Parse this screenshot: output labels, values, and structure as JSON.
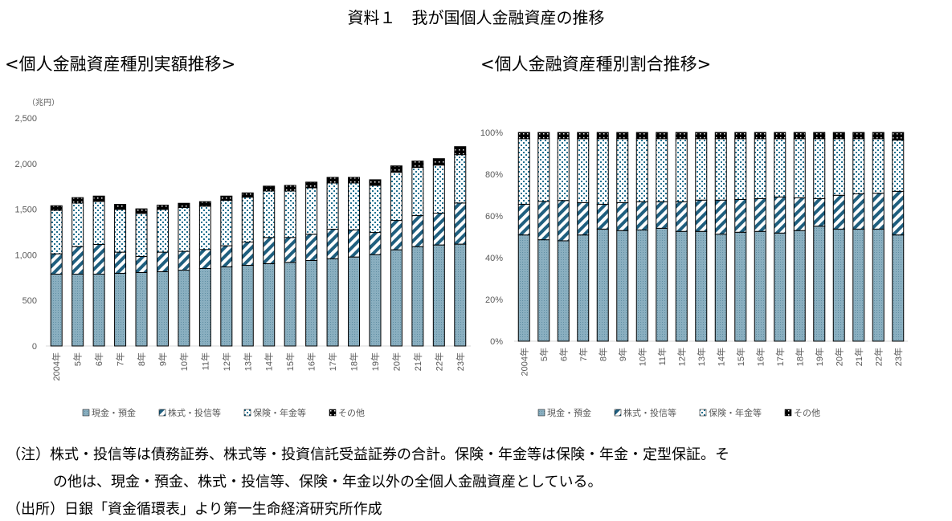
{
  "title": "資料１　我が国個人金融資産の推移",
  "notes": [
    "（注）株式・投信等は債務証券、株式等・投資信託受益証券の合計。保険・年金等は保険・年金・定型保証。そ",
    "の他は、現金・預金、株式・投信等、保険・年金以外の全個人金融資産としている。",
    "（出所）日銀「資金循環表」より第一生命経済研究所作成"
  ],
  "colors": {
    "cash": "#8aafc0",
    "stocks": "#1f5f7f",
    "insurance": "#1f6f8f",
    "other": "#000000"
  },
  "chart_data": [
    {
      "type": "bar",
      "stacked": true,
      "title": "<個人金融資産種別実額推移>",
      "unit_label": "（兆円）",
      "ylim": [
        0,
        2500
      ],
      "yticks": [
        0,
        500,
        1000,
        1500,
        2000,
        2500
      ],
      "ytick_labels": [
        "0",
        "500",
        "1,000",
        "1,500",
        "2,000",
        "2,500"
      ],
      "categories": [
        "2004年",
        "5年",
        "6年",
        "7年",
        "8年",
        "9年",
        "10年",
        "11年",
        "12年",
        "13年",
        "14年",
        "15年",
        "16年",
        "17年",
        "18年",
        "19年",
        "20年",
        "21年",
        "22年",
        "23年"
      ],
      "series": [
        {
          "name": "現金・預金",
          "key": "cash",
          "values": [
            788,
            788,
            788,
            797,
            806,
            815,
            832,
            850,
            868,
            885,
            903,
            917,
            938,
            958,
            976,
            1002,
            1055,
            1090,
            1108,
            1117
          ]
        },
        {
          "name": "株式・投信等",
          "key": "stocks",
          "values": [
            223,
            302,
            326,
            232,
            176,
            214,
            206,
            208,
            231,
            255,
            287,
            273,
            287,
            323,
            296,
            243,
            322,
            340,
            349,
            451
          ]
        },
        {
          "name": "保険・年金等",
          "key": "insurance",
          "values": [
            477,
            478,
            472,
            469,
            472,
            469,
            480,
            475,
            498,
            492,
            510,
            510,
            510,
            507,
            516,
            516,
            528,
            528,
            527,
            530
          ]
        },
        {
          "name": "その他",
          "key": "other",
          "values": [
            50,
            59,
            58,
            55,
            50,
            47,
            47,
            50,
            47,
            47,
            53,
            61,
            62,
            61,
            61,
            62,
            70,
            70,
            70,
            88
          ]
        }
      ]
    },
    {
      "type": "bar",
      "stacked": true,
      "title": "<個人金融資産種別割合推移>",
      "ylim": [
        0,
        100
      ],
      "yticks": [
        0,
        20,
        40,
        60,
        80,
        100
      ],
      "ytick_labels": [
        "0%",
        "20%",
        "40%",
        "60%",
        "80%",
        "100%"
      ],
      "categories": [
        "2004年",
        "5年",
        "6年",
        "7年",
        "8年",
        "9年",
        "10年",
        "11年",
        "12年",
        "13年",
        "14年",
        "15年",
        "16年",
        "17年",
        "18年",
        "19年",
        "20年",
        "21年",
        "22年",
        "23年"
      ],
      "series": [
        {
          "name": "現金・預金",
          "key": "cash",
          "values": [
            50.9,
            48.6,
            48.1,
            50.9,
            53.7,
            53.0,
            53.3,
            54.1,
            52.6,
            52.6,
            51.3,
            52.2,
            52.6,
            51.8,
            53.0,
            55.1,
            53.7,
            53.7,
            53.7,
            50.9
          ]
        },
        {
          "name": "株式・投信等",
          "key": "stocks",
          "values": [
            14.7,
            18.4,
            19.3,
            15.5,
            11.9,
            13.4,
            13.5,
            12.7,
            14.2,
            15.0,
            16.3,
            15.7,
            15.7,
            17.3,
            15.7,
            13.2,
            16.2,
            16.9,
            17.2,
            20.9
          ]
        },
        {
          "name": "保険・年金等",
          "key": "insurance",
          "values": [
            31.4,
            30.0,
            29.6,
            30.6,
            31.4,
            30.6,
            30.2,
            30.2,
            30.2,
            29.4,
            29.4,
            29.1,
            28.7,
            27.9,
            28.3,
            28.7,
            27.1,
            26.4,
            26.1,
            24.6
          ]
        },
        {
          "name": "その他",
          "key": "other",
          "values": [
            3.0,
            3.0,
            3.0,
            3.0,
            3.0,
            3.0,
            3.0,
            3.0,
            3.0,
            3.0,
            3.0,
            3.0,
            3.0,
            3.0,
            3.0,
            3.0,
            3.0,
            3.0,
            3.0,
            3.6
          ]
        }
      ]
    }
  ]
}
